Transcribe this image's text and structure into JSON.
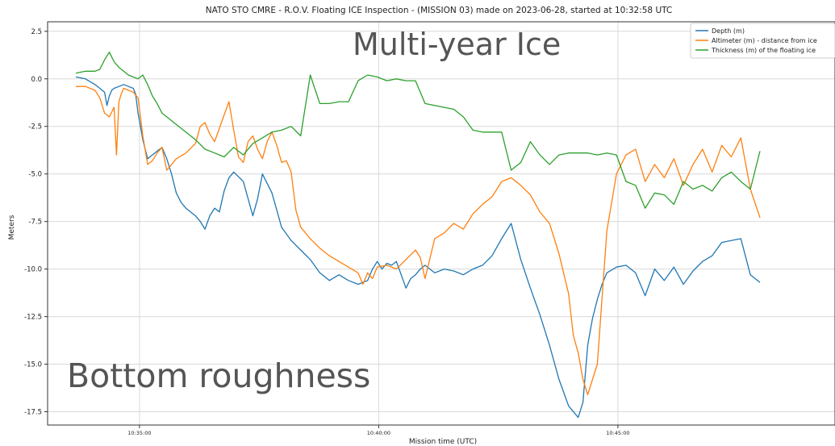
{
  "chart_data": {
    "type": "line",
    "title": "NATO STO CMRE - R.O.V. Floating ICE Inspection - (MISSION 03) made on 2023-06-28, started at 10:32:58 UTC",
    "xlabel": "Mission time (UTC)",
    "ylabel": "Meters",
    "x_units": "minutes after 10:32:58 UTC",
    "xlim": [
      0.0,
      15.9
    ],
    "ylim": [
      -18.2,
      3.0
    ],
    "grid": true,
    "legend_position": "top-right",
    "x_ticks": [
      {
        "value": 2.03,
        "label": "10:35:00"
      },
      {
        "value": 7.03,
        "label": "10:40:00"
      },
      {
        "value": 12.03,
        "label": "10:45:00"
      }
    ],
    "y_ticks": [
      {
        "value": 2.5,
        "label": "2.5"
      },
      {
        "value": 0.0,
        "label": "0.0"
      },
      {
        "value": -2.5,
        "label": "-2.5"
      },
      {
        "value": -5.0,
        "label": "-5.0"
      },
      {
        "value": -7.5,
        "label": "-7.5"
      },
      {
        "value": -10.0,
        "label": "-10.0"
      },
      {
        "value": -12.5,
        "label": "-12.5"
      },
      {
        "value": -15.0,
        "label": "-15.0"
      },
      {
        "value": -17.5,
        "label": "-17.5"
      }
    ],
    "series": [
      {
        "name": "Depth (m)",
        "color": "#1f77b4",
        "x": [
          0.7,
          0.9,
          1.1,
          1.2,
          1.3,
          1.35,
          1.4,
          1.45,
          1.5,
          1.6,
          1.7,
          1.8,
          1.9,
          1.95,
          2.0,
          2.05,
          2.1,
          2.2,
          2.3,
          2.4,
          2.5,
          2.6,
          2.7,
          2.8,
          2.9,
          3.0,
          3.2,
          3.3,
          3.4,
          3.5,
          3.6,
          3.7,
          3.8,
          3.9,
          4.0,
          4.2,
          4.3,
          4.4,
          4.5,
          4.6,
          4.8,
          5.0,
          5.2,
          5.4,
          5.6,
          5.8,
          6.0,
          6.2,
          6.4,
          6.6,
          6.8,
          6.9,
          7.0,
          7.1,
          7.2,
          7.3,
          7.4,
          7.5,
          7.6,
          7.7,
          7.8,
          7.9,
          8.0,
          8.2,
          8.4,
          8.6,
          8.8,
          9.0,
          9.2,
          9.4,
          9.6,
          9.8,
          10.0,
          10.2,
          10.4,
          10.6,
          10.8,
          11.0,
          11.2,
          11.3,
          11.4,
          11.5,
          11.6,
          11.7,
          11.8,
          12.0,
          12.2,
          12.4,
          12.6,
          12.8,
          13.0,
          13.2,
          13.4,
          13.6,
          13.8,
          14.0,
          14.2,
          14.4,
          14.6,
          14.8,
          15.0
        ],
        "y": [
          0.1,
          0.0,
          -0.3,
          -0.5,
          -0.7,
          -1.4,
          -0.9,
          -0.6,
          -0.5,
          -0.4,
          -0.3,
          -0.4,
          -0.5,
          -0.8,
          -1.8,
          -2.5,
          -3.2,
          -4.2,
          -4.0,
          -3.8,
          -3.6,
          -4.2,
          -5.0,
          -6.0,
          -6.5,
          -6.8,
          -7.2,
          -7.5,
          -7.9,
          -7.2,
          -6.8,
          -7.0,
          -5.9,
          -5.2,
          -4.9,
          -5.4,
          -6.3,
          -7.2,
          -6.3,
          -5.0,
          -6.0,
          -7.8,
          -8.5,
          -9.0,
          -9.5,
          -10.2,
          -10.6,
          -10.3,
          -10.6,
          -10.8,
          -10.6,
          -10.0,
          -9.6,
          -10.0,
          -9.7,
          -9.8,
          -9.6,
          -10.3,
          -11.0,
          -10.5,
          -10.3,
          -10.0,
          -9.8,
          -10.2,
          -10.0,
          -10.1,
          -10.3,
          -10.0,
          -9.8,
          -9.3,
          -8.4,
          -7.6,
          -9.5,
          -11.0,
          -12.4,
          -14.0,
          -15.8,
          -17.2,
          -17.8,
          -17.0,
          -14.0,
          -12.6,
          -11.6,
          -10.8,
          -10.2,
          -9.9,
          -9.8,
          -10.2,
          -11.4,
          -10.0,
          -10.6,
          -9.9,
          -10.8,
          -10.1,
          -9.6,
          -9.3,
          -8.6,
          -8.5,
          -8.4,
          -10.3,
          -10.7
        ]
      },
      {
        "name": "Altimeter (m) - distance from ice",
        "color": "#ff7f0e",
        "x": [
          0.7,
          0.9,
          1.1,
          1.2,
          1.3,
          1.4,
          1.5,
          1.55,
          1.6,
          1.65,
          1.7,
          1.8,
          1.9,
          2.0,
          2.05,
          2.1,
          2.2,
          2.3,
          2.4,
          2.5,
          2.6,
          2.8,
          3.0,
          3.2,
          3.3,
          3.4,
          3.5,
          3.6,
          3.7,
          3.8,
          3.9,
          4.0,
          4.1,
          4.2,
          4.3,
          4.4,
          4.5,
          4.6,
          4.7,
          4.8,
          4.9,
          5.0,
          5.1,
          5.2,
          5.3,
          5.4,
          5.6,
          5.8,
          6.0,
          6.2,
          6.4,
          6.6,
          6.7,
          6.8,
          6.9,
          7.0,
          7.2,
          7.4,
          7.6,
          7.8,
          7.9,
          8.0,
          8.2,
          8.4,
          8.6,
          8.8,
          9.0,
          9.2,
          9.4,
          9.6,
          9.8,
          10.0,
          10.2,
          10.4,
          10.6,
          10.8,
          11.0,
          11.1,
          11.2,
          11.3,
          11.4,
          11.6,
          11.8,
          12.0,
          12.2,
          12.4,
          12.6,
          12.8,
          13.0,
          13.2,
          13.4,
          13.6,
          13.8,
          14.0,
          14.2,
          14.4,
          14.6,
          14.8,
          15.0
        ],
        "y": [
          -0.4,
          -0.4,
          -0.6,
          -1.0,
          -1.8,
          -2.0,
          -1.5,
          -4.0,
          -1.2,
          -0.8,
          -0.5,
          -0.6,
          -0.7,
          -1.0,
          -2.0,
          -3.0,
          -4.5,
          -4.3,
          -3.9,
          -3.6,
          -4.8,
          -4.2,
          -3.9,
          -3.4,
          -2.5,
          -2.3,
          -2.9,
          -3.3,
          -2.6,
          -1.9,
          -1.2,
          -2.7,
          -4.1,
          -4.4,
          -3.3,
          -3.0,
          -3.7,
          -4.2,
          -3.3,
          -2.8,
          -3.5,
          -4.4,
          -4.3,
          -4.9,
          -6.9,
          -7.8,
          -8.4,
          -8.9,
          -9.3,
          -9.6,
          -9.9,
          -10.2,
          -10.8,
          -10.2,
          -10.5,
          -9.9,
          -9.8,
          -10.0,
          -9.5,
          -9.0,
          -9.4,
          -10.5,
          -8.4,
          -8.1,
          -7.6,
          -7.9,
          -7.1,
          -6.6,
          -6.2,
          -5.4,
          -5.2,
          -5.6,
          -6.1,
          -7.0,
          -7.6,
          -9.2,
          -11.3,
          -13.5,
          -14.4,
          -15.8,
          -16.6,
          -15.0,
          -8.0,
          -5.0,
          -4.0,
          -3.7,
          -5.4,
          -4.5,
          -5.2,
          -4.2,
          -5.6,
          -4.5,
          -3.7,
          -4.9,
          -3.5,
          -4.1,
          -3.1,
          -5.8,
          -7.3
        ]
      },
      {
        "name": "Thickness (m) of the floating ice",
        "color": "#2ca02c",
        "x": [
          0.7,
          0.9,
          1.1,
          1.2,
          1.3,
          1.4,
          1.5,
          1.6,
          1.7,
          1.8,
          1.9,
          2.0,
          2.1,
          2.2,
          2.3,
          2.4,
          2.5,
          2.6,
          2.8,
          3.0,
          3.2,
          3.4,
          3.6,
          3.8,
          4.0,
          4.2,
          4.4,
          4.6,
          4.8,
          5.0,
          5.2,
          5.4,
          5.6,
          5.8,
          6.0,
          6.2,
          6.4,
          6.6,
          6.8,
          7.0,
          7.2,
          7.4,
          7.6,
          7.8,
          8.0,
          8.2,
          8.4,
          8.6,
          8.8,
          9.0,
          9.2,
          9.4,
          9.6,
          9.8,
          10.0,
          10.2,
          10.4,
          10.6,
          10.8,
          11.0,
          11.1,
          11.2,
          11.4,
          11.6,
          11.8,
          12.0,
          12.2,
          12.4,
          12.6,
          12.8,
          13.0,
          13.2,
          13.4,
          13.6,
          13.8,
          14.0,
          14.2,
          14.4,
          14.6,
          14.8,
          15.0
        ],
        "y": [
          0.3,
          0.4,
          0.4,
          0.5,
          1.0,
          1.4,
          0.9,
          0.6,
          0.4,
          0.2,
          0.1,
          0.0,
          0.2,
          -0.3,
          -0.9,
          -1.3,
          -1.8,
          -2.0,
          -2.4,
          -2.8,
          -3.2,
          -3.7,
          -3.9,
          -4.1,
          -3.6,
          -4.0,
          -3.4,
          -3.1,
          -2.8,
          -2.7,
          -2.5,
          -3.0,
          0.2,
          -1.3,
          -1.3,
          -1.2,
          -1.2,
          -0.1,
          0.2,
          0.1,
          -0.1,
          0.0,
          -0.1,
          -0.1,
          -1.3,
          -1.4,
          -1.5,
          -1.6,
          -2.0,
          -2.7,
          -2.8,
          -2.8,
          -2.8,
          -4.8,
          -4.4,
          -3.3,
          -4.0,
          -4.5,
          -4.0,
          -3.9,
          -3.9,
          -3.9,
          -3.9,
          -4.0,
          -3.9,
          -4.0,
          -5.4,
          -5.6,
          -6.8,
          -6.0,
          -6.1,
          -6.6,
          -5.4,
          -5.8,
          -5.6,
          -5.9,
          -5.2,
          -4.9,
          -5.4,
          -5.8,
          -3.8
        ]
      }
    ],
    "annotations": [
      {
        "text": "Multi-year Ice"
      },
      {
        "text": "Bottom roughness"
      }
    ]
  }
}
